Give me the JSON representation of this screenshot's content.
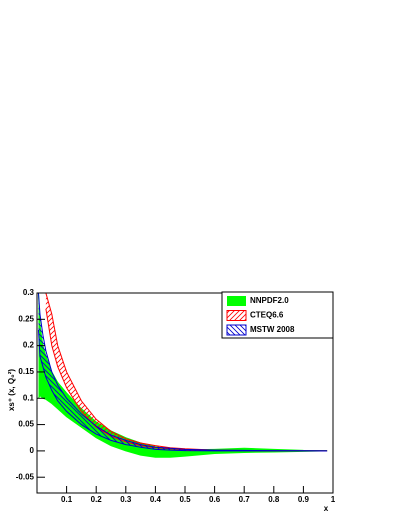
{
  "chart_data": {
    "type": "band",
    "xlabel": "x",
    "ylabel": "xs⁺ (x, Q₀²)",
    "x": [
      0.005,
      0.01,
      0.02,
      0.03,
      0.05,
      0.07,
      0.1,
      0.15,
      0.2,
      0.25,
      0.3,
      0.35,
      0.4,
      0.45,
      0.5,
      0.6,
      0.7,
      0.8,
      0.9,
      0.98
    ],
    "series": [
      {
        "name": "NNPDF2.0",
        "color": "#00ff00",
        "fill": "solid",
        "lower": [
          0.1,
          0.105,
          0.1,
          0.098,
          0.09,
          0.08,
          0.065,
          0.045,
          0.025,
          0.01,
          0,
          -0.008,
          -0.012,
          -0.012,
          -0.01,
          -0.005,
          -0.003,
          -0.002,
          -0.001,
          0
        ],
        "upper": [
          0.3,
          0.24,
          0.2,
          0.18,
          0.15,
          0.13,
          0.11,
          0.08,
          0.055,
          0.038,
          0.025,
          0.015,
          0.008,
          0.004,
          0.002,
          0.003,
          0.005,
          0.003,
          0.001,
          0.0005
        ]
      },
      {
        "name": "CTEQ6.6",
        "color": "#ff0000",
        "fill": "hatch-up",
        "lower": [
          null,
          null,
          null,
          0.27,
          0.2,
          0.16,
          0.12,
          0.075,
          0.045,
          0.028,
          0.017,
          0.01,
          0.006,
          0.004,
          0.002,
          0.0005,
          0.0002,
          0,
          0,
          0
        ],
        "upper": [
          null,
          null,
          null,
          0.3,
          0.26,
          0.2,
          0.15,
          0.095,
          0.06,
          0.037,
          0.023,
          0.015,
          0.01,
          0.006,
          0.004,
          0.0015,
          0.0008,
          0.0003,
          0.0001,
          0
        ]
      },
      {
        "name": "MSTW 2008",
        "color": "#0000cc",
        "fill": "hatch-down",
        "lower": [
          0.23,
          0.18,
          0.16,
          0.14,
          0.115,
          0.095,
          0.075,
          0.05,
          0.032,
          0.02,
          0.012,
          0.007,
          0.003,
          0.0015,
          0.0005,
          0,
          0,
          0,
          0,
          0
        ],
        "upper": [
          0.3,
          0.26,
          0.22,
          0.19,
          0.15,
          0.125,
          0.1,
          0.07,
          0.047,
          0.03,
          0.02,
          0.012,
          0.007,
          0.005,
          0.003,
          0.0015,
          0.001,
          0.0005,
          0.0002,
          0
        ]
      }
    ],
    "xlim": [
      0,
      1
    ],
    "ylim": [
      -0.08,
      0.3
    ],
    "xticks": [
      0.1,
      0.2,
      0.3,
      0.4,
      0.5,
      0.6,
      0.7,
      0.8,
      0.9,
      1
    ],
    "yticks": [
      -0.05,
      0,
      0.05,
      0.1,
      0.15,
      0.2,
      0.25,
      0.3
    ],
    "legend": "top-right"
  }
}
